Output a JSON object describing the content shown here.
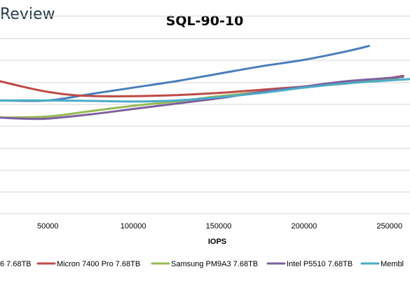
{
  "brand": {
    "label": "Review"
  },
  "chart_data": {
    "type": "line",
    "title": "SQL-90-10",
    "xlabel": "IOPS",
    "ylabel": "",
    "xlim": [
      22000,
      262000
    ],
    "ylim": [
      0,
      10
    ],
    "x_ticks": [
      50000,
      100000,
      150000,
      200000,
      250000
    ],
    "x_tick_labels": [
      "50000",
      "100000",
      "150000",
      "200000",
      "250000"
    ],
    "grid": true,
    "legend_position": "bottom",
    "legend_labels_visible": [
      "6 7.68TB",
      "Micron 7400 Pro 7.68TB",
      "Samsung PM9A3 7.68TB",
      "Intel P5510 7.68TB",
      "Membl"
    ],
    "series": [
      {
        "name": "6 7.68TB",
        "color": "#4a7ebb",
        "x": [
          22000,
          50000,
          75000,
          100000,
          125000,
          150000,
          175000,
          200000,
          225000,
          238000
        ],
        "y": [
          5.3,
          5.3,
          5.6,
          5.9,
          6.2,
          6.55,
          6.9,
          7.2,
          7.6,
          7.85
        ]
      },
      {
        "name": "Micron 7400 Pro 7.68TB",
        "color": "#be4b48",
        "x": [
          22000,
          35000,
          50000,
          65000,
          80000,
          100000,
          125000,
          150000,
          175000,
          200000,
          225000,
          250000,
          258000
        ],
        "y": [
          6.2,
          5.95,
          5.7,
          5.55,
          5.5,
          5.5,
          5.55,
          5.65,
          5.8,
          5.95,
          6.1,
          6.35,
          6.45
        ]
      },
      {
        "name": "Samsung PM9A3 7.68TB",
        "color": "#98b954",
        "x": [
          22000,
          50000,
          75000,
          100000,
          125000,
          150000,
          175000,
          200000,
          225000,
          255000
        ],
        "y": [
          4.5,
          4.55,
          4.8,
          5.05,
          5.25,
          5.5,
          5.7,
          5.95,
          6.15,
          6.35
        ]
      },
      {
        "name": "Intel P5510 7.68TB",
        "color": "#7d60a0",
        "x": [
          22000,
          35000,
          50000,
          75000,
          100000,
          125000,
          150000,
          175000,
          200000,
          225000,
          258000
        ],
        "y": [
          4.5,
          4.45,
          4.45,
          4.65,
          4.9,
          5.15,
          5.4,
          5.7,
          5.95,
          6.2,
          6.4
        ]
      },
      {
        "name": "Membl",
        "color": "#4bacc6",
        "x": [
          22000,
          50000,
          75000,
          100000,
          125000,
          150000,
          175000,
          200000,
          225000,
          262000
        ],
        "y": [
          5.3,
          5.3,
          5.28,
          5.25,
          5.3,
          5.45,
          5.65,
          5.9,
          6.1,
          6.3
        ]
      }
    ]
  }
}
